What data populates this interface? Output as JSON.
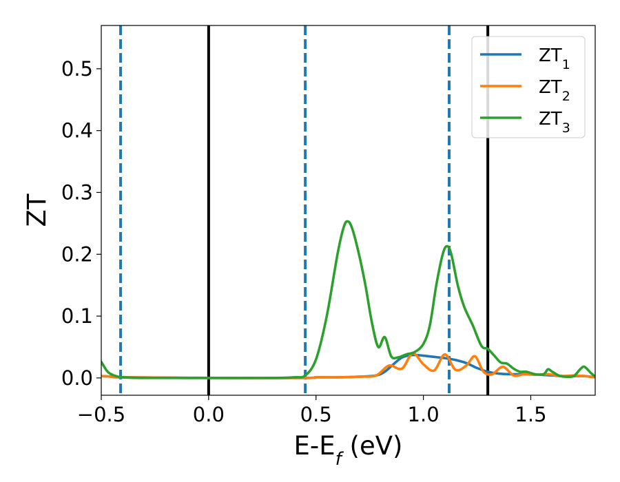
{
  "chart_data": {
    "type": "line",
    "xlabel_main": "E-E",
    "xlabel_sub": "f",
    "xlabel_unit": " (eV)",
    "ylabel": "ZT",
    "xlim": [
      -0.5,
      1.8
    ],
    "ylim": [
      -0.028,
      0.57
    ],
    "x_ticks": [
      -0.5,
      0.0,
      0.5,
      1.0,
      1.5
    ],
    "x_tick_labels": [
      "−0.5",
      "0.0",
      "0.5",
      "1.0",
      "1.5"
    ],
    "y_ticks": [
      0.0,
      0.1,
      0.2,
      0.3,
      0.4,
      0.5
    ],
    "y_tick_labels": [
      "0.0",
      "0.1",
      "0.2",
      "0.3",
      "0.4",
      "0.5"
    ],
    "grid": false,
    "legend_position": "top-right",
    "vlines": [
      {
        "x": -0.41,
        "style": "dashed",
        "color": "#1f77b4"
      },
      {
        "x": 0.0,
        "style": "solid",
        "color": "#000000"
      },
      {
        "x": 0.45,
        "style": "dashed",
        "color": "#1f77b4"
      },
      {
        "x": 1.12,
        "style": "dashed",
        "color": "#1f77b4"
      },
      {
        "x": 1.3,
        "style": "solid",
        "color": "#000000"
      }
    ],
    "series": [
      {
        "name": "ZT",
        "sub": "1",
        "color": "#1f77b4",
        "x": [
          -0.5,
          -0.45,
          -0.4,
          0.0,
          0.45,
          0.5,
          0.6,
          0.7,
          0.78,
          0.82,
          0.86,
          0.9,
          0.95,
          1.0,
          1.05,
          1.1,
          1.15,
          1.2,
          1.25,
          1.3,
          1.35,
          1.4,
          1.45,
          1.5,
          1.55,
          1.6,
          1.65,
          1.7,
          1.75,
          1.8
        ],
        "y": [
          0.003,
          0.002,
          0.001,
          0.0,
          0.0,
          0.001,
          0.001,
          0.002,
          0.004,
          0.01,
          0.022,
          0.033,
          0.037,
          0.036,
          0.034,
          0.032,
          0.029,
          0.024,
          0.016,
          0.01,
          0.007,
          0.006,
          0.006,
          0.006,
          0.005,
          0.004,
          0.003,
          0.003,
          0.003,
          0.001
        ]
      },
      {
        "name": "ZT",
        "sub": "2",
        "color": "#ff7f0e",
        "x": [
          -0.5,
          -0.45,
          -0.4,
          0.0,
          0.45,
          0.5,
          0.6,
          0.7,
          0.78,
          0.84,
          0.9,
          0.95,
          1.0,
          1.05,
          1.1,
          1.15,
          1.2,
          1.24,
          1.28,
          1.32,
          1.37,
          1.42,
          1.47,
          1.52,
          1.58,
          1.64,
          1.7,
          1.75,
          1.8
        ],
        "y": [
          0.003,
          0.002,
          0.001,
          0.0,
          0.0,
          0.001,
          0.001,
          0.002,
          0.004,
          0.02,
          0.015,
          0.04,
          0.022,
          0.012,
          0.038,
          0.013,
          0.02,
          0.035,
          0.01,
          0.006,
          0.018,
          0.004,
          0.006,
          0.005,
          0.006,
          0.003,
          0.004,
          0.003,
          0.001
        ]
      },
      {
        "name": "ZT",
        "sub": "3",
        "color": "#2ca02c",
        "x": [
          -0.5,
          -0.47,
          -0.44,
          -0.4,
          -0.3,
          0.0,
          0.3,
          0.4,
          0.45,
          0.5,
          0.55,
          0.6,
          0.63,
          0.65,
          0.67,
          0.7,
          0.73,
          0.76,
          0.79,
          0.82,
          0.85,
          0.88,
          0.92,
          0.96,
          1.0,
          1.03,
          1.06,
          1.09,
          1.11,
          1.13,
          1.16,
          1.19,
          1.23,
          1.27,
          1.3,
          1.33,
          1.36,
          1.39,
          1.42,
          1.45,
          1.48,
          1.52,
          1.56,
          1.58,
          1.6,
          1.63,
          1.66,
          1.7,
          1.73,
          1.75,
          1.78,
          1.8
        ],
        "y": [
          0.026,
          0.01,
          0.004,
          0.001,
          0.0,
          0.0,
          0.0,
          0.001,
          0.004,
          0.03,
          0.1,
          0.2,
          0.245,
          0.253,
          0.24,
          0.2,
          0.15,
          0.09,
          0.05,
          0.066,
          0.035,
          0.033,
          0.038,
          0.042,
          0.055,
          0.085,
          0.15,
          0.2,
          0.213,
          0.2,
          0.15,
          0.115,
          0.085,
          0.052,
          0.047,
          0.036,
          0.025,
          0.023,
          0.015,
          0.01,
          0.01,
          0.006,
          0.006,
          0.014,
          0.01,
          0.004,
          0.002,
          0.003,
          0.014,
          0.018,
          0.008,
          0.002
        ]
      }
    ]
  }
}
